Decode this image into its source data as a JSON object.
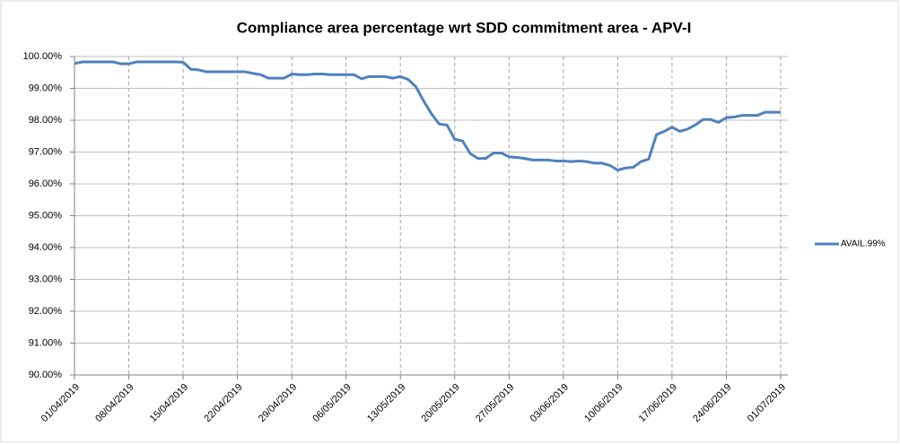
{
  "chart_data": {
    "type": "line",
    "title": "Compliance area percentage wrt SDD commitment area - APV-I",
    "categories": [
      "01/04/2019",
      null,
      null,
      null,
      null,
      null,
      null,
      "08/04/2019",
      null,
      null,
      null,
      null,
      null,
      null,
      "15/04/2019",
      null,
      null,
      null,
      null,
      null,
      null,
      "22/04/2019",
      null,
      null,
      null,
      null,
      null,
      null,
      "29/04/2019",
      null,
      null,
      null,
      null,
      null,
      null,
      "06/05/2019",
      null,
      null,
      null,
      null,
      null,
      null,
      "13/05/2019",
      null,
      null,
      null,
      null,
      null,
      null,
      "20/05/2019",
      null,
      null,
      null,
      null,
      null,
      null,
      "27/05/2019",
      null,
      null,
      null,
      null,
      null,
      null,
      "03/06/2019",
      null,
      null,
      null,
      null,
      null,
      null,
      "10/06/2019",
      null,
      null,
      null,
      null,
      null,
      null,
      "17/06/2019",
      null,
      null,
      null,
      null,
      null,
      null,
      "24/06/2019",
      null,
      null,
      null,
      null,
      null,
      null,
      "01/07/2019"
    ],
    "series": [
      {
        "name": "AVAIL.99%",
        "color": "#4f81bd",
        "values": [
          99.78,
          99.83,
          99.83,
          99.83,
          99.83,
          99.83,
          99.77,
          99.77,
          99.83,
          99.83,
          99.83,
          99.83,
          99.83,
          99.83,
          99.82,
          99.6,
          99.58,
          99.52,
          99.52,
          99.52,
          99.52,
          99.52,
          99.52,
          99.47,
          99.43,
          99.32,
          99.32,
          99.32,
          99.45,
          99.43,
          99.43,
          99.45,
          99.45,
          99.43,
          99.43,
          99.43,
          99.43,
          99.3,
          99.37,
          99.37,
          99.37,
          99.32,
          99.37,
          99.28,
          99.05,
          98.6,
          98.2,
          97.88,
          97.85,
          97.4,
          97.35,
          96.95,
          96.8,
          96.8,
          96.97,
          96.97,
          96.85,
          96.83,
          96.8,
          96.75,
          96.75,
          96.75,
          96.72,
          96.72,
          96.7,
          96.72,
          96.7,
          96.65,
          96.65,
          96.58,
          96.43,
          96.5,
          96.52,
          96.7,
          96.78,
          97.55,
          97.65,
          97.78,
          97.65,
          97.72,
          97.85,
          98.02,
          98.02,
          97.93,
          98.08,
          98.1,
          98.15,
          98.15,
          98.15,
          98.25,
          98.25,
          98.25
        ]
      }
    ],
    "ylim": [
      90,
      100
    ],
    "yticks": [
      {
        "value": 90,
        "label": "90.00%"
      },
      {
        "value": 91,
        "label": "91.00%"
      },
      {
        "value": 92,
        "label": "92.00%"
      },
      {
        "value": 93,
        "label": "93.00%"
      },
      {
        "value": 94,
        "label": "94.00%"
      },
      {
        "value": 95,
        "label": "95.00%"
      },
      {
        "value": 96,
        "label": "96.00%"
      },
      {
        "value": 97,
        "label": "97.00%"
      },
      {
        "value": 98,
        "label": "98.00%"
      },
      {
        "value": 99,
        "label": "99.00%"
      },
      {
        "value": 100,
        "label": "100.00%"
      }
    ],
    "grid": true,
    "legend": "right"
  }
}
